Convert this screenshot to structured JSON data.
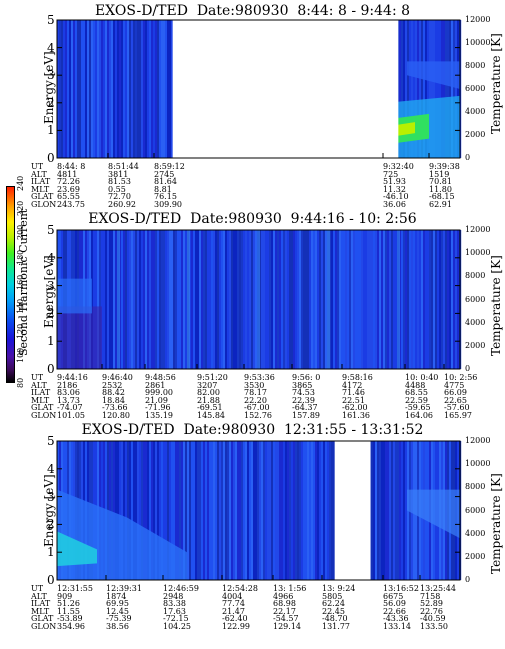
{
  "colorbar": {
    "title": "Second Harmonic Current",
    "ticks": [
      "80",
      "100",
      "120",
      "140",
      "160",
      "180",
      "200",
      "220",
      "240"
    ]
  },
  "chart_data": [
    {
      "type": "heatmap",
      "title": "EXOS-D/TED  Date:980930  8:44: 8 - 9:44: 8",
      "ylabel": "Energy [eV]",
      "y2label": "Temperature [K]",
      "ylim": [
        0,
        5
      ],
      "y2lim": [
        0,
        12000
      ],
      "yticks": [
        "0",
        "1",
        "2",
        "3",
        "4",
        "5"
      ],
      "y2ticks": [
        "0",
        "2000",
        "4000",
        "6000",
        "8000",
        "10000",
        "12000"
      ],
      "data_gaps": [
        [
          0.287,
          0.847
        ]
      ],
      "ephemeris": {
        "labels": [
          "UT",
          "ALT",
          "ILAT",
          "MLT",
          "GLAT",
          "GLON"
        ],
        "columns": [
          [
            "8:44: 8",
            "4811",
            "72.26",
            "23.69",
            "65.55",
            "243.75"
          ],
          [
            "8:51:44",
            "3811",
            "81.53",
            "0.55",
            "72.70",
            "260.92"
          ],
          [
            "8:59:12",
            "2745",
            "81.64",
            "8.81",
            "76.15",
            "309.90"
          ],
          [
            "9:32:40",
            "725",
            "51.93",
            "11.32",
            "-46.10",
            "36.06"
          ],
          [
            "9:39:38",
            "1519",
            "70.81",
            "11.80",
            "-68.15",
            "62.91"
          ]
        ]
      }
    },
    {
      "type": "heatmap",
      "title": "EXOS-D/TED  Date:980930  9:44:16 - 10: 2:56",
      "ylabel": "Energy [eV]",
      "y2label": "Temperature [K]",
      "ylim": [
        0,
        5
      ],
      "y2lim": [
        0,
        12000
      ],
      "yticks": [
        "0",
        "1",
        "2",
        "3",
        "4",
        "5"
      ],
      "y2ticks": [
        "0",
        "2000",
        "4000",
        "6000",
        "8000",
        "10000",
        "12000"
      ],
      "data_gaps": [],
      "ephemeris": {
        "labels": [
          "UT",
          "ALT",
          "ILAT",
          "MLT",
          "GLAT",
          "GLON"
        ],
        "columns": [
          [
            "9:44:16",
            "2186",
            "83.06",
            "13.73",
            "-74.07",
            "101.05"
          ],
          [
            "9:46:40",
            "2532",
            "88.42",
            "18.84",
            "-73.66",
            "120.80"
          ],
          [
            "9:48:56",
            "2861",
            "999.00",
            "21.09",
            "-71.96",
            "135.19"
          ],
          [
            "9:51:20",
            "3207",
            "82.00",
            "21.88",
            "-69.51",
            "145.84"
          ],
          [
            "9:53:36",
            "3530",
            "78.17",
            "22.20",
            "-67.00",
            "152.76"
          ],
          [
            "9:56: 0",
            "3865",
            "74.53",
            "22.39",
            "-64.37",
            "157.89"
          ],
          [
            "9:58:16",
            "4172",
            "71.46",
            "22.51",
            "-62.00",
            "161.36"
          ],
          [
            "10: 0:40",
            "4488",
            "68.55",
            "22.59",
            "-59.65",
            "164.06"
          ],
          [
            "10: 2:56",
            "4775",
            "66.09",
            "22.65",
            "-57.60",
            "165.97"
          ]
        ]
      }
    },
    {
      "type": "heatmap",
      "title": "EXOS-D/TED  Date:980930  12:31:55 - 13:31:52",
      "ylabel": "Energy [eV]",
      "y2label": "Temperature [K]",
      "ylim": [
        0,
        5
      ],
      "y2lim": [
        0,
        12000
      ],
      "yticks": [
        "0",
        "1",
        "2",
        "3",
        "4",
        "5"
      ],
      "y2ticks": [
        "0",
        "2000",
        "4000",
        "6000",
        "8000",
        "10000",
        "12000"
      ],
      "data_gaps": [
        [
          0.689,
          0.778
        ]
      ],
      "ephemeris": {
        "labels": [
          "UT",
          "ALT",
          "ILAT",
          "MLT",
          "GLAT",
          "GLON"
        ],
        "columns": [
          [
            "12:31:55",
            "909",
            "51.26",
            "11.55",
            "-53.89",
            "354.96"
          ],
          [
            "12:39:31",
            "1874",
            "69.95",
            "12.45",
            "-75.39",
            "38.56"
          ],
          [
            "12:46:59",
            "2948",
            "83.38",
            "17.63",
            "-72.15",
            "104.25"
          ],
          [
            "12:54:28",
            "4004",
            "77.74",
            "21.47",
            "-62.40",
            "122.99"
          ],
          [
            "13: 1:56",
            "4966",
            "68.98",
            "22.17",
            "-54.57",
            "129.14"
          ],
          [
            "13: 9:24",
            "5805",
            "62.24",
            "22.45",
            "-48.70",
            "131.77"
          ],
          [
            "13:16:52",
            "6675",
            "56.09",
            "22.66",
            "-43.36",
            "133.14"
          ],
          [
            "13:25:44",
            "7158",
            "52.89",
            "22.76",
            "-40.59",
            "133.50"
          ]
        ]
      }
    }
  ]
}
